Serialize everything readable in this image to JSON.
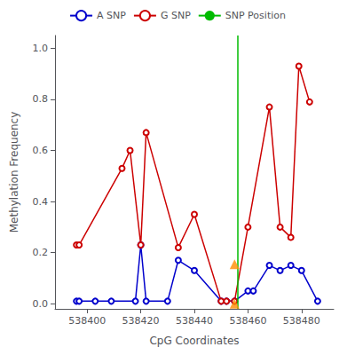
{
  "chart_data": {
    "type": "line",
    "xlabel": "CpG Coordinates",
    "ylabel": "Methylation Frequency",
    "xlim": [
      538388,
      538492
    ],
    "xticks": [
      538400,
      538420,
      538440,
      538460,
      538480
    ],
    "ylim": [
      -0.02,
      1.05
    ],
    "yticks": [
      {
        "value": 0,
        "label": "0.0"
      },
      0.2,
      0.4,
      0.6,
      0.8,
      {
        "value": 1,
        "label": "1.0"
      }
    ],
    "grid": false,
    "legend": "top",
    "series": [
      {
        "name": "A SNP",
        "type": "line",
        "marker": "circle",
        "color": "#0000cc",
        "x": [
          538396,
          538397,
          538403,
          538409,
          538418,
          538420,
          538422,
          538430,
          538434,
          538440,
          538450,
          538452,
          538455,
          538460,
          538462,
          538468,
          538472,
          538476,
          538480,
          538486
        ],
        "values": [
          0.01,
          0.01,
          0.01,
          0.01,
          0.01,
          0.23,
          0.01,
          0.01,
          0.17,
          0.13,
          0.01,
          0.01,
          0.01,
          0.05,
          0.05,
          0.15,
          0.13,
          0.15,
          0.13,
          0.01
        ]
      },
      {
        "name": "G SNP",
        "type": "line",
        "marker": "circle",
        "color": "#cc0000",
        "x": [
          538396,
          538397,
          538413,
          538416,
          538420,
          538422,
          538434,
          538440,
          538450,
          538452,
          538455,
          538460,
          538468,
          538472,
          538476,
          538479,
          538483
        ],
        "values": [
          0.23,
          0.23,
          0.53,
          0.6,
          0.23,
          0.67,
          0.22,
          0.35,
          0.01,
          0.01,
          0.01,
          0.3,
          0.77,
          0.3,
          0.26,
          0.93,
          0.79
        ]
      },
      {
        "name": "SNP Position",
        "type": "vline",
        "color": "#00bb00",
        "x": [
          538456
        ]
      },
      {
        "type": "scatter",
        "marker": "triangle",
        "color": "#ff8c00",
        "x": [
          538455,
          538455
        ],
        "values": [
          0.0,
          0.155
        ]
      }
    ]
  }
}
